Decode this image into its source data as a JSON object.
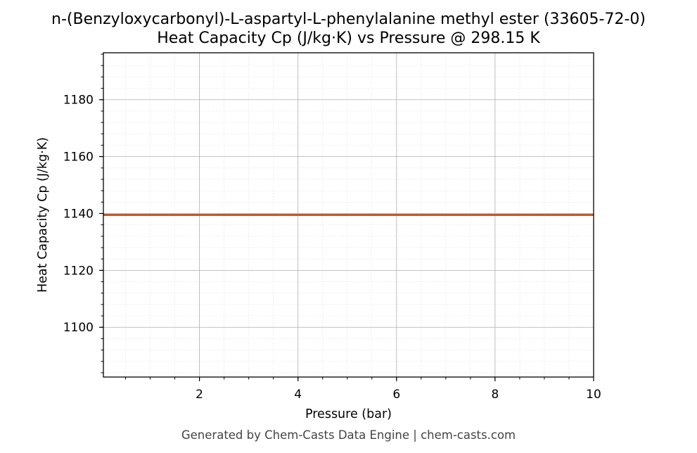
{
  "chart_data": {
    "type": "line",
    "title": "n-(Benzyloxycarbonyl)-L-aspartyl-L-phenylalanine methyl ester (33605-72-0)",
    "subtitle": "Heat Capacity Cp (J/kg·K) vs Pressure @ 298.15 K",
    "xlabel": "Pressure (bar)",
    "ylabel": "Heat Capacity Cp (J/kg·K)",
    "xlim": [
      0.05,
      10
    ],
    "ylim": [
      1082.5,
      1196.5
    ],
    "x_ticks": [
      2,
      4,
      6,
      8,
      10
    ],
    "y_ticks": [
      1100,
      1120,
      1140,
      1160,
      1180
    ],
    "grid": true,
    "series": [
      {
        "x": [
          0.05,
          1,
          2,
          3,
          4,
          5,
          6,
          7,
          8,
          9,
          10
        ],
        "y": [
          1139.5,
          1139.5,
          1139.5,
          1139.5,
          1139.5,
          1139.5,
          1139.5,
          1139.5,
          1139.5,
          1139.5,
          1139.5
        ],
        "color": "#c8552a"
      }
    ]
  },
  "footer": "Generated by Chem-Casts Data Engine | chem-casts.com"
}
